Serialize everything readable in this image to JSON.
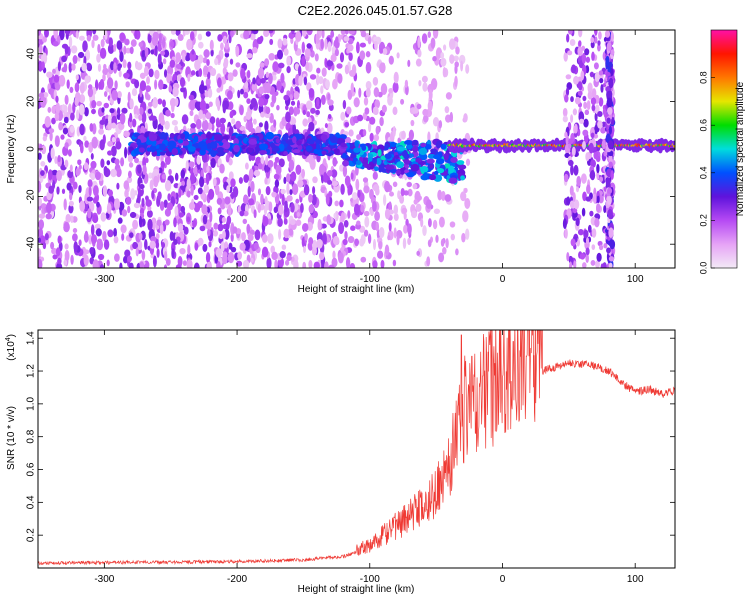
{
  "figure_title": "C2E2.2026.045.01.57.G28",
  "colors": {
    "signal": "#ef3a34",
    "colormap": [
      "#f3eaf6",
      "#e6a3f6",
      "#b64af4",
      "#5e13dc",
      "#0050ff",
      "#00dddd",
      "#00dd00",
      "#e6e600",
      "#ff7700",
      "#ff1500",
      "#ff10a6"
    ]
  },
  "chart_data": [
    {
      "type": "heatmap",
      "title": "",
      "xlabel": "Height of straight line (km)",
      "ylabel": "Frequency (Hz)",
      "xlim": [
        -350,
        130
      ],
      "ylim": [
        -50,
        50
      ],
      "xticks": [
        -300,
        -200,
        -100,
        0,
        100
      ],
      "yticks": [
        -40,
        -20,
        0,
        20,
        40
      ],
      "xtick_labels": [
        "-300",
        "-200",
        "-100",
        "0",
        "100"
      ],
      "ytick_labels": [
        "-40",
        "-20",
        "0",
        "20",
        "40"
      ],
      "colorbar": {
        "label": "Normalized spectral amplitude",
        "range": [
          0,
          1
        ],
        "ticks": [
          0.0,
          0.2,
          0.4,
          0.6,
          0.8
        ],
        "tick_labels": [
          "0.0",
          "0.2",
          "0.4",
          "0.6",
          "0.8"
        ]
      },
      "features": {
        "noise_region_x": [
          -350,
          -25
        ],
        "ridge_x": [
          -280,
          -30
        ],
        "tone_x": [
          -40,
          130
        ],
        "tone_frequency": 1.5,
        "vertical_bands": [
          {
            "x": [
              47,
              80
            ],
            "amplitude": 0.25
          },
          {
            "x": [
              79,
              83
            ],
            "amplitude": 0.3
          }
        ]
      }
    },
    {
      "type": "line",
      "title": "",
      "xlabel": "Height of straight line (km)",
      "ylabel": "SNR (10 * v/v)",
      "y_multiplier": "(x10",
      "y_multiplier_exp": "4",
      "y_multiplier_close": ")",
      "xlim": [
        -350,
        130
      ],
      "ylim": [
        0,
        1.45
      ],
      "xticks": [
        -300,
        -200,
        -100,
        0,
        100
      ],
      "yticks": [
        0.2,
        0.4,
        0.6,
        0.8,
        1.0,
        1.2,
        1.4
      ],
      "xtick_labels": [
        "-300",
        "-200",
        "-100",
        "0",
        "100"
      ],
      "ytick_labels": [
        "0.2",
        "0.4",
        "0.6",
        "0.8",
        "1.0",
        "1.2",
        "1.4"
      ],
      "envelope": {
        "x": [
          -350,
          -250,
          -200,
          -150,
          -120,
          -100,
          -80,
          -60,
          -50,
          -40,
          -35,
          -30,
          -20,
          -10,
          0,
          10,
          20,
          30,
          50,
          70,
          80,
          90,
          100,
          110,
          120,
          130
        ],
        "y": [
          0.03,
          0.035,
          0.04,
          0.05,
          0.07,
          0.12,
          0.22,
          0.32,
          0.4,
          0.55,
          0.7,
          0.82,
          0.88,
          0.95,
          1.0,
          1.05,
          1.12,
          1.2,
          1.25,
          1.23,
          1.2,
          1.13,
          1.07,
          1.09,
          1.06,
          1.08
        ]
      },
      "spikes": [
        {
          "x": -31,
          "y": 1.42
        },
        {
          "x": -23,
          "y": 1.29
        },
        {
          "x": -15,
          "y": 1.17
        },
        {
          "x": 8,
          "y": 1.38
        },
        {
          "x": 18,
          "y": 1.29
        }
      ]
    }
  ]
}
